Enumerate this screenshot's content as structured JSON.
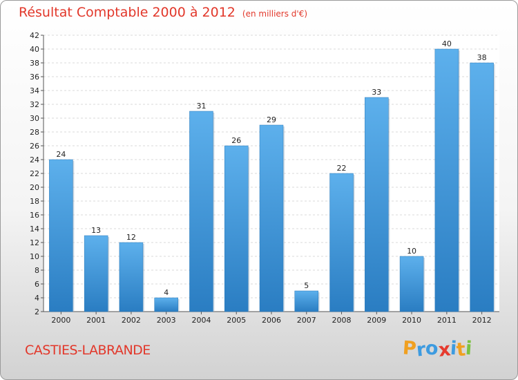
{
  "title": "Résultat Comptable 2000 à 2012",
  "subtitle": "(en milliers d'€)",
  "commune": "CASTIES-LABRANDE",
  "logo": {
    "letters": [
      "P",
      "r",
      "o",
      "x",
      "i",
      "t",
      "i"
    ],
    "colors": [
      "#f0a020",
      "#3d9be0",
      "#3d9be0",
      "#e63a2e",
      "#3d9be0",
      "#f0a020",
      "#7cc242"
    ]
  },
  "chart_data": {
    "type": "bar",
    "categories": [
      "2000",
      "2001",
      "2002",
      "2003",
      "2004",
      "2005",
      "2006",
      "2007",
      "2008",
      "2009",
      "2010",
      "2011",
      "2012"
    ],
    "values": [
      24,
      13,
      12,
      4,
      31,
      26,
      29,
      5,
      22,
      33,
      10,
      40,
      38
    ],
    "ylim": [
      2,
      42
    ],
    "yticks": [
      2,
      4,
      6,
      8,
      10,
      12,
      14,
      16,
      18,
      20,
      22,
      24,
      26,
      28,
      30,
      32,
      34,
      36,
      38,
      40,
      42
    ],
    "grid": true,
    "bar_color": "#3d9be0"
  }
}
